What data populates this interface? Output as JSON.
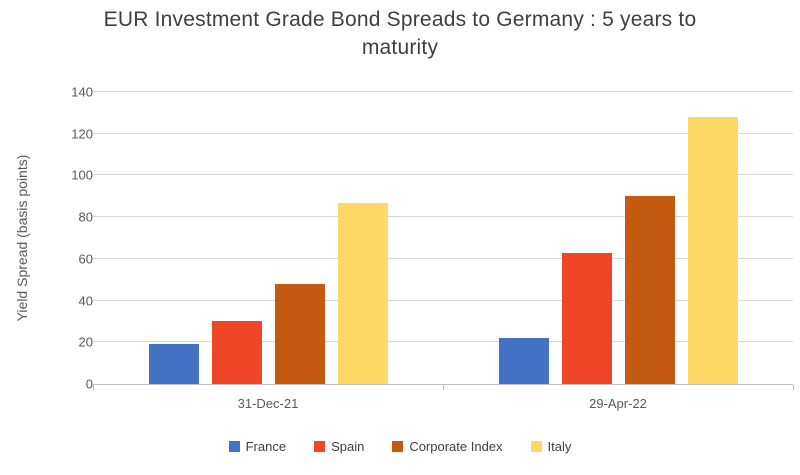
{
  "title": "EUR Investment Grade Bond Spreads to Germany : 5 years to maturity",
  "chart_data": {
    "type": "bar",
    "categories": [
      "31-Dec-21",
      "29-Apr-22"
    ],
    "series": [
      {
        "name": "France",
        "color": "#4472C4",
        "values": [
          19,
          22
        ]
      },
      {
        "name": "Spain",
        "color": "#F04628",
        "values": [
          30,
          63
        ]
      },
      {
        "name": "Corporate Index",
        "color": "#C45A11",
        "values": [
          48,
          90
        ]
      },
      {
        "name": "Italy",
        "color": "#FFD966",
        "values": [
          87,
          128
        ]
      }
    ],
    "title": "EUR Investment Grade Bond Spreads to Germany : 5 years to maturity",
    "xlabel": "",
    "ylabel": "Yield Spread (basis points)",
    "ylim": [
      0,
      140
    ],
    "yticks": [
      0,
      20,
      40,
      60,
      80,
      100,
      120,
      140
    ],
    "grid": true,
    "legend_position": "bottom"
  }
}
